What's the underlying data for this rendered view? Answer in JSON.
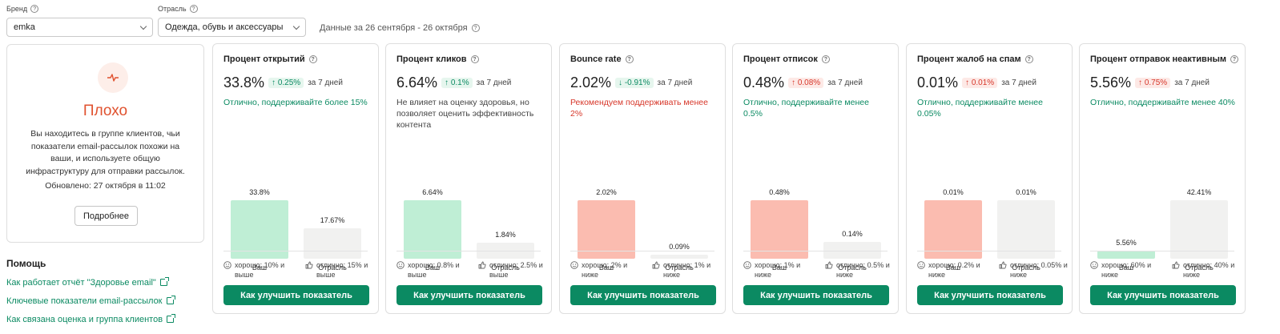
{
  "filters": {
    "brand": {
      "label": "Бренд",
      "value": "emka"
    },
    "industry": {
      "label": "Отрасль",
      "value": "Одежда, обувь и аксессуары"
    },
    "period": "Данные за 26 сентября - 26 октября"
  },
  "status": {
    "title": "Плохо",
    "description": "Вы находитесь в группе клиентов, чьи показатели email-рассылок похожи на ваши, и используете общую инфраструктуру для отправки рассылок.",
    "updated": "Обновлено: 27 октября в 11:02",
    "more_label": "Подробнее",
    "color": "#e0522f"
  },
  "help": {
    "title": "Помощь",
    "links": [
      "Как работает отчёт \"Здоровье email\"",
      "Ключевые показатели email-рассылок",
      "Как связана оценка и группа клиентов"
    ]
  },
  "common": {
    "yours": "Ваш",
    "industry": "Отрасль",
    "cta": "Как улучшить показатель",
    "period": "за 7 дней"
  },
  "metrics": [
    {
      "title": "Процент открытий",
      "value": "33.8%",
      "delta": "↑ 0.25%",
      "delta_kind": "good",
      "recommendation": "Отлично, поддерживайте более 15%",
      "rec_kind": "green",
      "yours_label": "33.8%",
      "yours_value": 33.8,
      "industry_label": "17.67%",
      "industry_value": 17.67,
      "yours_color": "#bfeed5",
      "good": "хорошо: 10% и выше",
      "excellent": "отлично: 15% и выше"
    },
    {
      "title": "Процент кликов",
      "value": "6.64%",
      "delta": "↑ 0.1%",
      "delta_kind": "good",
      "recommendation": "Не влияет на оценку здоровья, но позволяет оценить эффективность контента",
      "rec_kind": "gray",
      "yours_label": "6.64%",
      "yours_value": 6.64,
      "industry_label": "1.84%",
      "industry_value": 1.84,
      "yours_color": "#bfeed5",
      "good": "хорошо: 0.8% и выше",
      "excellent": "отлично: 2.5% и выше"
    },
    {
      "title": "Bounce rate",
      "value": "2.02%",
      "delta": "↓ -0.91%",
      "delta_kind": "good",
      "recommendation": "Рекомендуем поддерживать менее 2%",
      "rec_kind": "red",
      "yours_label": "2.02%",
      "yours_value": 2.02,
      "industry_label": "0.09%",
      "industry_value": 0.09,
      "yours_color": "#fbbcb0",
      "good": "хорошо: 2% и ниже",
      "excellent": "отлично: 1% и ниже"
    },
    {
      "title": "Процент отписок",
      "value": "0.48%",
      "delta": "↑ 0.08%",
      "delta_kind": "bad",
      "recommendation": "Отлично, поддерживайте менее 0.5%",
      "rec_kind": "green",
      "yours_label": "0.48%",
      "yours_value": 0.48,
      "industry_label": "0.14%",
      "industry_value": 0.14,
      "yours_color": "#fbbcb0",
      "good": "хорошо: 1% и ниже",
      "excellent": "отлично: 0.5% и ниже"
    },
    {
      "title": "Процент жалоб на спам",
      "value": "0.01%",
      "delta": "↑ 0.01%",
      "delta_kind": "bad",
      "recommendation": "Отлично, поддерживайте менее 0.05%",
      "rec_kind": "green",
      "yours_label": "0.01%",
      "yours_value": 0.01,
      "industry_label": "0.01%",
      "industry_value": 0.01,
      "yours_color": "#fbbcb0",
      "good": "хорошо: 0.2% и ниже",
      "excellent": "отлично: 0.05% и ниже"
    },
    {
      "title": "Процент отправок неактивным",
      "value": "5.56%",
      "delta": "↑ 0.75%",
      "delta_kind": "bad",
      "recommendation": "Отлично, поддерживайте менее 40%",
      "rec_kind": "green",
      "yours_label": "5.56%",
      "yours_value": 5.56,
      "industry_label": "42.41%",
      "industry_value": 42.41,
      "yours_color": "#bfeed5",
      "good": "хорошо: 60% и ниже",
      "excellent": "отлично: 40% и ниже"
    }
  ]
}
